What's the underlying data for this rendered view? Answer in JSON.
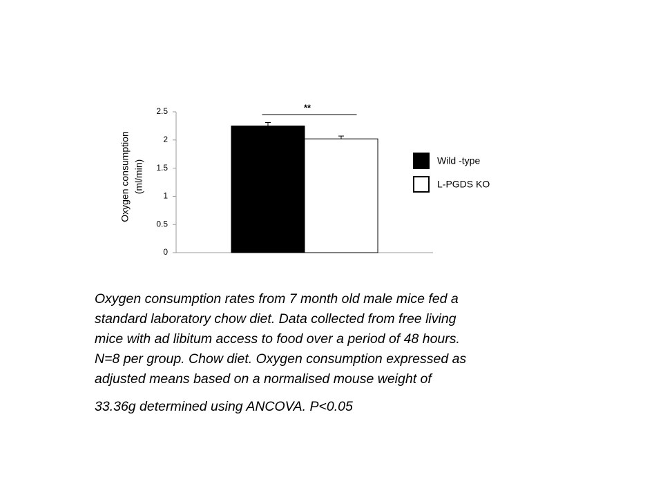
{
  "chart_data": {
    "type": "bar",
    "ylabel": [
      "Oxygen consumption",
      "(ml/min)"
    ],
    "categories": [
      null
    ],
    "series": [
      {
        "name": "Wild -type",
        "color": "#000000",
        "values": [
          2.25
        ],
        "errors": [
          0.06
        ]
      },
      {
        "name": "L-PGDS KO",
        "color": "#ffffff",
        "values": [
          2.02
        ],
        "errors": [
          0.05
        ]
      }
    ],
    "edgecolor": "#000000",
    "annotation": "**",
    "ylim": [
      0,
      2.5
    ],
    "yticks": [
      0,
      0.5,
      1,
      1.5,
      2,
      2.5
    ],
    "grid": false,
    "legend": "right"
  },
  "caption": [
    "Oxygen consumption rates from 7 month old male mice fed a",
    "standard laboratory chow diet. Data collected from free living",
    "mice with ad libitum access to food over a period of 48 hours.",
    "N=8 per group. Chow diet. Oxygen consumption expressed as",
    "adjusted means based on a normalised mouse weight of",
    "33.36g determined using ANCOVA. P<0.05"
  ]
}
